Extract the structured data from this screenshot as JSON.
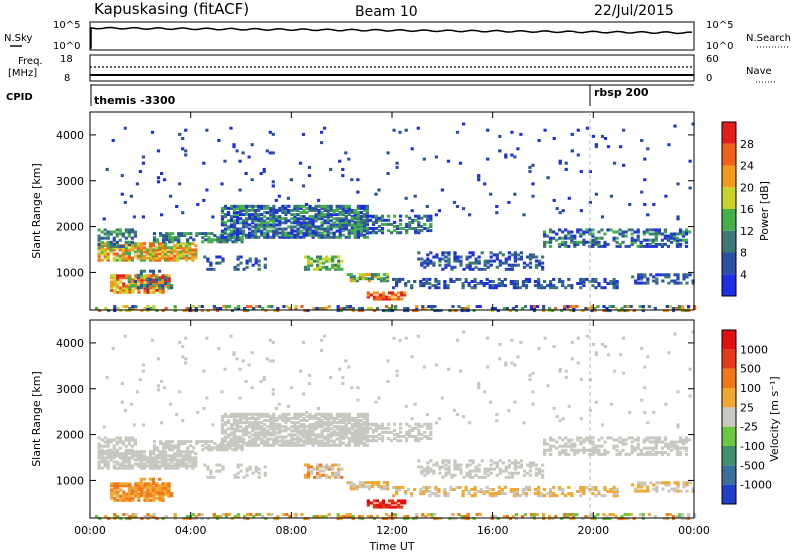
{
  "header": {
    "station": "Kapuskasing (fitACF)",
    "beam": "Beam 10",
    "date": "22/Jul/2015"
  },
  "top_panels": {
    "nsky_label": "N.Sky",
    "nsky_ticks": [
      "10^5",
      "10^0"
    ],
    "nsearch_label": "N.Search",
    "nsearch_ticks": [
      "10^5",
      "10^0"
    ],
    "freq_label": "Freq.",
    "freq_unit": "[MHz]",
    "freq_ticks": [
      "18",
      "8"
    ],
    "nave_label": "Nave",
    "nave_ticks": [
      "60",
      "0"
    ],
    "cpid_label": "CPID",
    "cpid_entries": [
      {
        "label": "themis -3300",
        "start_ut": 0
      },
      {
        "label": "rbsp 200",
        "start_ut": 20
      }
    ]
  },
  "chart_data": [
    {
      "type": "heatmap",
      "name": "power",
      "ylabel": "Slant Range [km]",
      "ylim": [
        180,
        4500
      ],
      "yticks": [
        1000,
        2000,
        3000,
        4000
      ],
      "xlim": [
        0,
        24
      ],
      "colorbar_label": "Power [dB]",
      "colorbar_ticks": [
        "4",
        "8",
        "12",
        "16",
        "20",
        "24",
        "28"
      ],
      "colors": [
        "#1c2fe3",
        "#2c4fa6",
        "#3e7a74",
        "#43b04a",
        "#c7d42a",
        "#f19a1d",
        "#f06318",
        "#e21d1d"
      ]
    },
    {
      "type": "heatmap",
      "name": "velocity",
      "ylabel": "Slant Range [km]",
      "ylim": [
        180,
        4500
      ],
      "yticks": [
        1000,
        2000,
        3000,
        4000
      ],
      "xlim": [
        0,
        24
      ],
      "xticks": [
        "00:00",
        "04:00",
        "08:00",
        "12:00",
        "16:00",
        "20:00",
        "00:00"
      ],
      "xlabel": "Time UT",
      "colorbar_label": "Velocity [m s^-1]",
      "colorbar_ticks": [
        "1000",
        "500",
        "100",
        "25",
        "-25",
        "-100",
        "-500",
        "-1000"
      ],
      "colors": [
        "#1f3fc9",
        "#3a6e9b",
        "#3f8f6a",
        "#6cc83f",
        "#c8c8c0",
        "#f0a830",
        "#f07818",
        "#e23a18",
        "#e01010"
      ]
    }
  ]
}
